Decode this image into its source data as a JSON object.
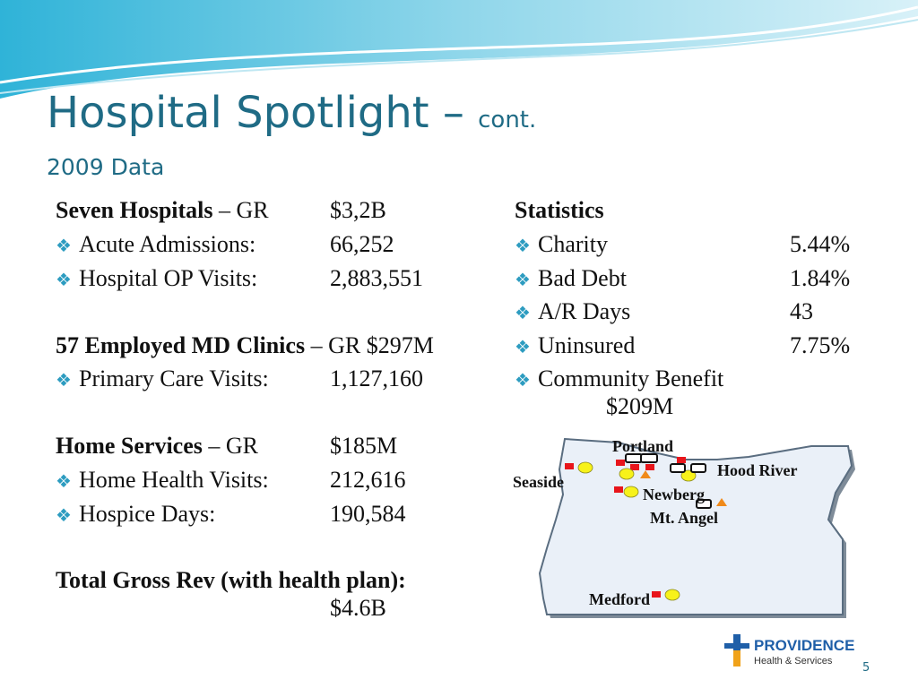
{
  "slide": {
    "title_main": "Hospital Spotlight – ",
    "title_cont": "cont.",
    "subtitle": "2009 Data",
    "page_number": "5"
  },
  "left": {
    "hospitals": {
      "heading": "Seven Hospitals",
      "suffix": " – GR",
      "value": "$3,2B",
      "items": [
        {
          "label": "Acute Admissions:",
          "value": "66,252"
        },
        {
          "label": "Hospital OP Visits:",
          "value": "2,883,551"
        }
      ]
    },
    "clinics": {
      "heading": "57 Employed MD Clinics",
      "suffix": " – GR $297M",
      "items": [
        {
          "label": "Primary Care Visits:",
          "value": "1,127,160"
        }
      ]
    },
    "home": {
      "heading": "Home Services",
      "suffix": " – GR",
      "value": "$185M",
      "items": [
        {
          "label": "Home Health Visits:",
          "value": "212,616"
        },
        {
          "label": "Hospice Days:",
          "value": "190,584"
        }
      ]
    },
    "total": {
      "label": "Total Gross Rev (with health plan):",
      "value": "$4.6B"
    }
  },
  "right": {
    "heading": "Statistics",
    "items": [
      {
        "label": "Charity",
        "value": "5.44%"
      },
      {
        "label": "Bad Debt",
        "value": "1.84%"
      },
      {
        "label": "A/R Days",
        "value": "43"
      },
      {
        "label": "Uninsured",
        "value": "7.75%"
      },
      {
        "label": "Community Benefit",
        "value": "$209M"
      }
    ]
  },
  "map": {
    "cities": [
      "Portland",
      "Hood River",
      "Seaside",
      "Newberg",
      "Mt. Angel",
      "Medford"
    ]
  },
  "logo": {
    "name": "PROVIDENCE",
    "tagline": "Health & Services"
  },
  "colors": {
    "title": "#1f6b85",
    "bullet": "#2d9cc0",
    "map_fill": "#eaf0f8",
    "hospital_marker": "#e8151b",
    "clinic_marker": "#f7f21a",
    "home_marker": "#f08a1a"
  }
}
